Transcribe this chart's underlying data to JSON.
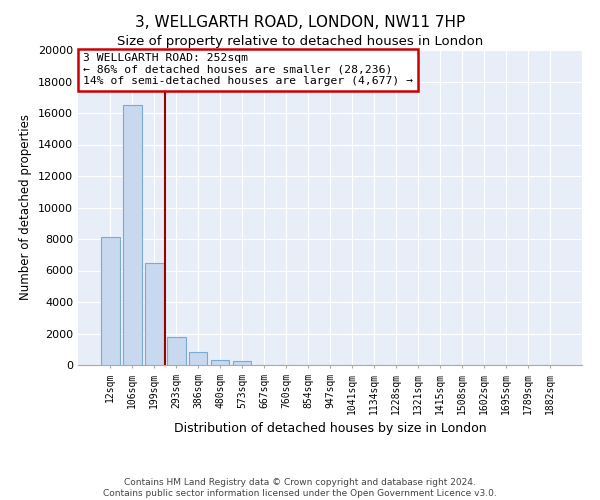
{
  "title": "3, WELLGARTH ROAD, LONDON, NW11 7HP",
  "subtitle": "Size of property relative to detached houses in London",
  "xlabel": "Distribution of detached houses by size in London",
  "ylabel": "Number of detached properties",
  "bar_labels": [
    "12sqm",
    "106sqm",
    "199sqm",
    "293sqm",
    "386sqm",
    "480sqm",
    "573sqm",
    "667sqm",
    "760sqm",
    "854sqm",
    "947sqm",
    "1041sqm",
    "1134sqm",
    "1228sqm",
    "1321sqm",
    "1415sqm",
    "1508sqm",
    "1602sqm",
    "1695sqm",
    "1789sqm",
    "1882sqm"
  ],
  "bar_values": [
    8100,
    16500,
    6500,
    1800,
    800,
    300,
    250,
    0,
    0,
    0,
    0,
    0,
    0,
    0,
    0,
    0,
    0,
    0,
    0,
    0,
    0
  ],
  "bar_color": "#c8d8ee",
  "bar_edge_color": "#7aaad0",
  "vline_color": "#990000",
  "vline_x": 2.5,
  "annotation_box_edgecolor": "#cc0000",
  "property_label": "3 WELLGARTH ROAD: 252sqm",
  "annotation_line1": "← 86% of detached houses are smaller (28,236)",
  "annotation_line2": "14% of semi-detached houses are larger (4,677) →",
  "ylim": [
    0,
    20000
  ],
  "yticks": [
    0,
    2000,
    4000,
    6000,
    8000,
    10000,
    12000,
    14000,
    16000,
    18000,
    20000
  ],
  "footer_line1": "Contains HM Land Registry data © Crown copyright and database right 2024.",
  "footer_line2": "Contains public sector information licensed under the Open Government Licence v3.0.",
  "bg_color": "#ffffff",
  "plot_bg_color": "#e8eef8",
  "grid_color": "#ffffff",
  "title_fontsize": 11,
  "subtitle_fontsize": 9.5
}
